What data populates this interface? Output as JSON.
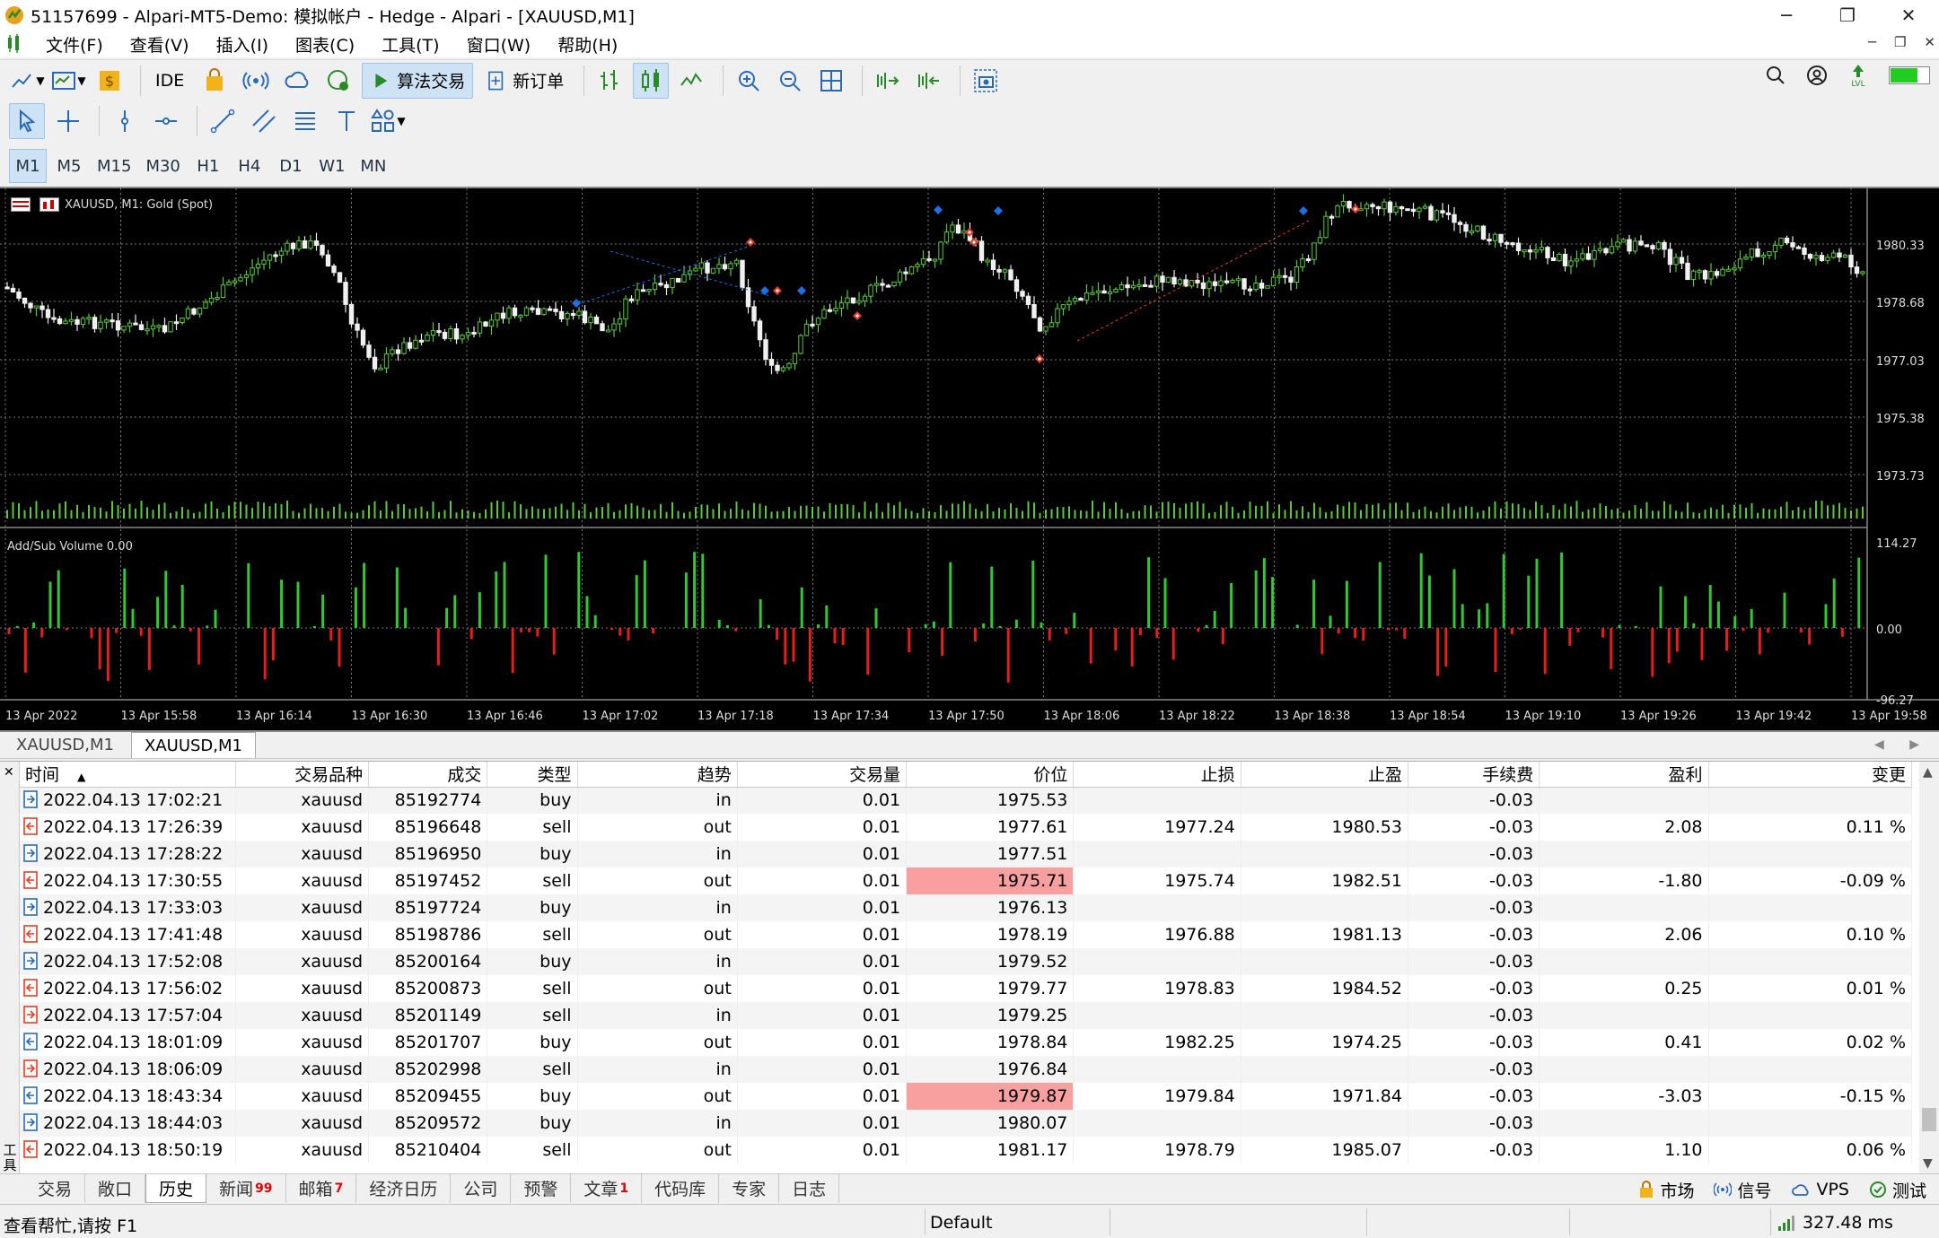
{
  "window": {
    "title": "51157699 - Alpari-MT5-Demo: 模拟帐户 - Hedge - Alpari - [XAUUSD,M1]",
    "controls": {
      "minimize": "─",
      "maximize": "❐",
      "close": "✕"
    }
  },
  "menu": {
    "items": [
      "文件(F)",
      "查看(V)",
      "插入(I)",
      "图表(C)",
      "工具(T)",
      "窗口(W)",
      "帮助(H)"
    ]
  },
  "toolbar": {
    "ide_label": "IDE",
    "algo_label": "算法交易",
    "new_order_label": "新订单"
  },
  "timeframes": [
    "M1",
    "M5",
    "M15",
    "M30",
    "H1",
    "H4",
    "D1",
    "W1",
    "MN"
  ],
  "active_timeframe": "M1",
  "chart": {
    "header": "XAUUSD, M1:  Gold (Spot)",
    "indicator_label": "Add/Sub Volume 0.00",
    "price_ticks": [
      "1980.33",
      "1978.68",
      "1977.03",
      "1975.38",
      "1973.73"
    ],
    "indicator_ticks": [
      "114.27",
      "0.00",
      "-96.27"
    ],
    "time_ticks": [
      "13 Apr 2022",
      "13 Apr 15:58",
      "13 Apr 16:14",
      "13 Apr 16:30",
      "13 Apr 16:46",
      "13 Apr 17:02",
      "13 Apr 17:18",
      "13 Apr 17:34",
      "13 Apr 17:50",
      "13 Apr 18:06",
      "13 Apr 18:22",
      "13 Apr 18:38",
      "13 Apr 18:54",
      "13 Apr 19:10",
      "13 Apr 19:26",
      "13 Apr 19:42",
      "13 Apr 19:58"
    ],
    "colors": {
      "bull": "#5ac83c",
      "bear": "#f0f0f0",
      "grid": "#7a7a7a",
      "buy_marker": "#1e6ee6",
      "sell_marker": "#e63c28",
      "vol_up": "#32c832",
      "vol_down": "#e61e1e"
    }
  },
  "chart_tabs": {
    "tabs": [
      "XAUUSD,M1",
      "XAUUSD,M1"
    ],
    "nav": "◀ ▶"
  },
  "history": {
    "columns": [
      "时间",
      "交易品种",
      "成交",
      "类型",
      "趋势",
      "交易量",
      "价位",
      "止损",
      "止盈",
      "手续费",
      "盈利",
      "变更"
    ],
    "sort_indicator": "▲",
    "rows": [
      {
        "dir": "in",
        "time": "2022.04.13 17:02:21",
        "symbol": "xauusd",
        "deal": "85192774",
        "type": "buy",
        "entry": "in",
        "volume": "0.01",
        "price": "1975.53",
        "sl": "",
        "tp": "",
        "commission": "-0.03",
        "profit": "",
        "change": "",
        "highlight": false,
        "sign": ""
      },
      {
        "dir": "out",
        "time": "2022.04.13 17:26:39",
        "symbol": "xauusd",
        "deal": "85196648",
        "type": "sell",
        "entry": "out",
        "volume": "0.01",
        "price": "1977.61",
        "sl": "1977.24",
        "tp": "1980.53",
        "commission": "-0.03",
        "profit": "2.08",
        "change": "0.11 %",
        "highlight": false,
        "sign": "pos"
      },
      {
        "dir": "in",
        "time": "2022.04.13 17:28:22",
        "symbol": "xauusd",
        "deal": "85196950",
        "type": "buy",
        "entry": "in",
        "volume": "0.01",
        "price": "1977.51",
        "sl": "",
        "tp": "",
        "commission": "-0.03",
        "profit": "",
        "change": "",
        "highlight": false,
        "sign": ""
      },
      {
        "dir": "out",
        "time": "2022.04.13 17:30:55",
        "symbol": "xauusd",
        "deal": "85197452",
        "type": "sell",
        "entry": "out",
        "volume": "0.01",
        "price": "1975.71",
        "sl": "1975.74",
        "tp": "1982.51",
        "commission": "-0.03",
        "profit": "-1.80",
        "change": "-0.09 %",
        "highlight": true,
        "sign": "neg"
      },
      {
        "dir": "in",
        "time": "2022.04.13 17:33:03",
        "symbol": "xauusd",
        "deal": "85197724",
        "type": "buy",
        "entry": "in",
        "volume": "0.01",
        "price": "1976.13",
        "sl": "",
        "tp": "",
        "commission": "-0.03",
        "profit": "",
        "change": "",
        "highlight": false,
        "sign": ""
      },
      {
        "dir": "out",
        "time": "2022.04.13 17:41:48",
        "symbol": "xauusd",
        "deal": "85198786",
        "type": "sell",
        "entry": "out",
        "volume": "0.01",
        "price": "1978.19",
        "sl": "1976.88",
        "tp": "1981.13",
        "commission": "-0.03",
        "profit": "2.06",
        "change": "0.10 %",
        "highlight": false,
        "sign": "pos"
      },
      {
        "dir": "in",
        "time": "2022.04.13 17:52:08",
        "symbol": "xauusd",
        "deal": "85200164",
        "type": "buy",
        "entry": "in",
        "volume": "0.01",
        "price": "1979.52",
        "sl": "",
        "tp": "",
        "commission": "-0.03",
        "profit": "",
        "change": "",
        "highlight": false,
        "sign": ""
      },
      {
        "dir": "out",
        "time": "2022.04.13 17:56:02",
        "symbol": "xauusd",
        "deal": "85200873",
        "type": "sell",
        "entry": "out",
        "volume": "0.01",
        "price": "1979.77",
        "sl": "1978.83",
        "tp": "1984.52",
        "commission": "-0.03",
        "profit": "0.25",
        "change": "0.01 %",
        "highlight": false,
        "sign": "pos"
      },
      {
        "dir": "in2",
        "time": "2022.04.13 17:57:04",
        "symbol": "xauusd",
        "deal": "85201149",
        "type": "sell",
        "entry": "in",
        "volume": "0.01",
        "price": "1979.25",
        "sl": "",
        "tp": "",
        "commission": "-0.03",
        "profit": "",
        "change": "",
        "highlight": false,
        "sign": ""
      },
      {
        "dir": "out2",
        "time": "2022.04.13 18:01:09",
        "symbol": "xauusd",
        "deal": "85201707",
        "type": "buy",
        "entry": "out",
        "volume": "0.01",
        "price": "1978.84",
        "sl": "1982.25",
        "tp": "1974.25",
        "commission": "-0.03",
        "profit": "0.41",
        "change": "0.02 %",
        "highlight": false,
        "sign": "pos"
      },
      {
        "dir": "in2",
        "time": "2022.04.13 18:06:09",
        "symbol": "xauusd",
        "deal": "85202998",
        "type": "sell",
        "entry": "in",
        "volume": "0.01",
        "price": "1976.84",
        "sl": "",
        "tp": "",
        "commission": "-0.03",
        "profit": "",
        "change": "",
        "highlight": false,
        "sign": ""
      },
      {
        "dir": "out2",
        "time": "2022.04.13 18:43:34",
        "symbol": "xauusd",
        "deal": "85209455",
        "type": "buy",
        "entry": "out",
        "volume": "0.01",
        "price": "1979.87",
        "sl": "1979.84",
        "tp": "1971.84",
        "commission": "-0.03",
        "profit": "-3.03",
        "change": "-0.15 %",
        "highlight": true,
        "sign": "neg"
      },
      {
        "dir": "in",
        "time": "2022.04.13 18:44:03",
        "symbol": "xauusd",
        "deal": "85209572",
        "type": "buy",
        "entry": "in",
        "volume": "0.01",
        "price": "1980.07",
        "sl": "",
        "tp": "",
        "commission": "-0.03",
        "profit": "",
        "change": "",
        "highlight": false,
        "sign": ""
      },
      {
        "dir": "out",
        "time": "2022.04.13 18:50:19",
        "symbol": "xauusd",
        "deal": "85210404",
        "type": "sell",
        "entry": "out",
        "volume": "0.01",
        "price": "1981.17",
        "sl": "1978.79",
        "tp": "1985.07",
        "commission": "-0.03",
        "profit": "1.10",
        "change": "0.06 %",
        "highlight": false,
        "sign": "pos"
      }
    ]
  },
  "toolbox_side_label": "工具箱",
  "bottom_tabs": [
    {
      "label": "交易",
      "count": ""
    },
    {
      "label": "敞口",
      "count": ""
    },
    {
      "label": "历史",
      "count": ""
    },
    {
      "label": "新闻",
      "count": "99"
    },
    {
      "label": "邮箱",
      "count": "7"
    },
    {
      "label": "经济日历",
      "count": ""
    },
    {
      "label": "公司",
      "count": ""
    },
    {
      "label": "预警",
      "count": ""
    },
    {
      "label": "文章",
      "count": "1"
    },
    {
      "label": "代码库",
      "count": ""
    },
    {
      "label": "专家",
      "count": ""
    },
    {
      "label": "日志",
      "count": ""
    }
  ],
  "active_bottom_tab": "历史",
  "bottom_right": {
    "market": "市场",
    "signals": "信号",
    "vps": "VPS",
    "tester": "测试"
  },
  "status": {
    "help": "查看帮忙,请按 F1",
    "profile": "Default",
    "ping": "327.48 ms"
  }
}
